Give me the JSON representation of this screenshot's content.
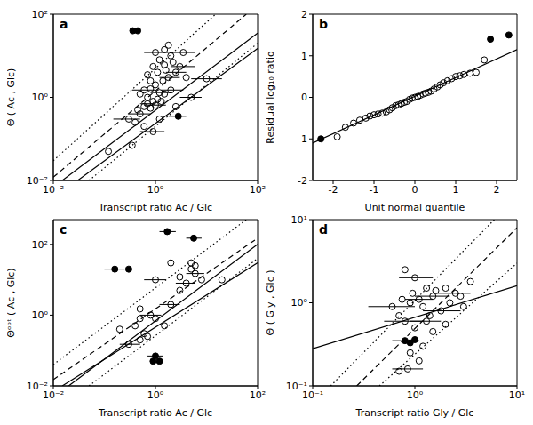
{
  "chart_data": [
    {
      "type": "scatter",
      "title": "a",
      "log": true,
      "x_label": "Transcript ratio Ac / Glc",
      "y_label": "Θ ( Ac , Glc)",
      "xlim": [
        0.01,
        100
      ],
      "ylim": [
        0.01,
        100
      ],
      "xticks": [
        {
          "value": 0.01,
          "label": "10⁻²"
        },
        {
          "value": 1,
          "label": "10⁰"
        },
        {
          "value": 100,
          "label": "10²"
        }
      ],
      "yticks": [
        {
          "value": 0.01,
          "label": "10⁻²"
        },
        {
          "value": 1,
          "label": "10⁰"
        },
        {
          "value": 100,
          "label": "10²"
        }
      ],
      "series": [
        {
          "marker": "open circle",
          "color": "#000000",
          "x": [
            0.12,
            0.35,
            0.3,
            0.4,
            0.5,
            0.45,
            0.6,
            0.7,
            0.8,
            0.9,
            1.0,
            1.1,
            1.3,
            0.7,
            0.6,
            0.8,
            0.5,
            1.2,
            1.5,
            2.0,
            1.0,
            0.8,
            1.4,
            1.8,
            0.7,
            1.1,
            1.6,
            2.5,
            0.9,
            1.5,
            3.0,
            2.2,
            1.2,
            2.0,
            1.0,
            1.5,
            3.5,
            1.8,
            2.5,
            5,
            4,
            0.6,
            1.2,
            0.9,
            10
          ],
          "y": [
            0.05,
            0.07,
            0.3,
            0.25,
            0.4,
            0.5,
            0.6,
            0.7,
            0.55,
            0.8,
            0.65,
            0.9,
            0.8,
            1.0,
            1.5,
            1.6,
            1.2,
            1.3,
            1.2,
            1.5,
            2.0,
            2.5,
            2.5,
            3.0,
            3.5,
            4.0,
            4.5,
            4.0,
            5.5,
            6.0,
            5.5,
            7.0,
            8.0,
            10,
            12,
            14,
            12,
            18,
            0.6,
            1.0,
            3,
            0.2,
            0.3,
            0.15,
            2.8
          ],
          "x_err": [
            null,
            null,
            [
              0.15,
              0.5
            ],
            null,
            [
              0.3,
              0.8
            ],
            null,
            null,
            [
              0.5,
              1.0
            ],
            null,
            null,
            [
              0.6,
              1.6
            ],
            null,
            null,
            null,
            [
              0.35,
              1.0
            ],
            null,
            null,
            [
              0.8,
              2.0
            ],
            null,
            [
              1.3,
              3.5
            ],
            null,
            null,
            null,
            [
              1.2,
              3.0
            ],
            null,
            null,
            null,
            [
              1.6,
              4.0
            ],
            null,
            null,
            [
              2.0,
              6.0
            ],
            null,
            null,
            null,
            [
              0.6,
              1.8
            ],
            null,
            [
              2.0,
              6.0
            ],
            null,
            null,
            [
              3,
              8
            ],
            null,
            null,
            null,
            [
              0.5,
              1.5
            ],
            [
              5,
              20
            ]
          ]
        },
        {
          "marker": "filled circle",
          "color": "#000000",
          "x": [
            0.36,
            0.45,
            2.8
          ],
          "y": [
            40,
            40,
            0.35
          ],
          "x_err": [
            null,
            null,
            [
              1.8,
              4.0
            ]
          ]
        }
      ],
      "lines": [
        {
          "line_style": "solid",
          "color": "#000000",
          "x": [
            0.015,
            100
          ],
          "y": [
            0.01,
            35
          ]
        },
        {
          "line_style": "solid",
          "color": "#000000",
          "x": [
            0.03,
            100
          ],
          "y": [
            0.01,
            15
          ]
        },
        {
          "line_style": "dashed",
          "color": "#000000",
          "x": [
            0.01,
            60
          ],
          "y": [
            0.012,
            100
          ]
        },
        {
          "line_style": "dotted",
          "color": "#000000",
          "x": [
            0.01,
            15
          ],
          "y": [
            0.03,
            100
          ]
        },
        {
          "line_style": "dotted",
          "color": "#000000",
          "x": [
            0.05,
            100
          ],
          "y": [
            0.01,
            20
          ]
        }
      ]
    },
    {
      "type": "scatter",
      "title": "b",
      "x_label": "Unit normal quantile",
      "y_label": "Residual log₁₀ ratio",
      "xlim": [
        -2.5,
        2.5
      ],
      "ylim": [
        -2,
        2
      ],
      "xticks": [
        -2,
        -1,
        0,
        1,
        2
      ],
      "yticks": [
        -2,
        -1,
        0,
        1,
        2
      ],
      "series": [
        {
          "marker": "open circle",
          "color": "#000000",
          "x": [
            -1.9,
            -1.7,
            -1.5,
            -1.35,
            -1.2,
            -1.1,
            -1.0,
            -0.9,
            -0.8,
            -0.7,
            -0.62,
            -0.55,
            -0.47,
            -0.4,
            -0.33,
            -0.26,
            -0.2,
            -0.13,
            -0.07,
            0,
            0.07,
            0.13,
            0.2,
            0.26,
            0.33,
            0.4,
            0.47,
            0.55,
            0.62,
            0.7,
            0.8,
            0.9,
            1.0,
            1.1,
            1.2,
            1.35,
            1.5,
            1.7
          ],
          "y": [
            -0.95,
            -0.72,
            -0.62,
            -0.55,
            -0.5,
            -0.45,
            -0.42,
            -0.4,
            -0.38,
            -0.35,
            -0.3,
            -0.25,
            -0.2,
            -0.18,
            -0.15,
            -0.12,
            -0.1,
            -0.05,
            -0.02,
            0,
            0.02,
            0.05,
            0.08,
            0.1,
            0.12,
            0.15,
            0.2,
            0.25,
            0.3,
            0.35,
            0.4,
            0.45,
            0.5,
            0.52,
            0.55,
            0.58,
            0.6,
            0.9
          ]
        },
        {
          "marker": "filled circle",
          "color": "#000000",
          "x": [
            -2.3,
            1.85,
            2.3
          ],
          "y": [
            -1.0,
            1.4,
            1.5
          ]
        }
      ],
      "lines": [
        {
          "line_style": "solid",
          "color": "#000000",
          "x": [
            -2.5,
            2.5
          ],
          "y": [
            -1.1,
            1.15
          ]
        }
      ]
    },
    {
      "type": "scatter",
      "title": "c",
      "log": true,
      "x_label": "Transcript ratio Ac / Glc",
      "y_label": "Θᵒᵖᵗ ( Ac , Glc)",
      "xlim": [
        0.01,
        100
      ],
      "ylim": [
        0.01,
        500
      ],
      "xticks": [
        {
          "value": 0.01,
          "label": "10⁻²"
        },
        {
          "value": 1,
          "label": "10⁰"
        },
        {
          "value": 100,
          "label": "10²"
        }
      ],
      "yticks": [
        {
          "value": 0.01,
          "label": "10⁻²"
        },
        {
          "value": 1,
          "label": "10⁰"
        },
        {
          "value": 100,
          "label": "10²"
        }
      ],
      "series": [
        {
          "marker": "open circle",
          "color": "#000000",
          "x": [
            0.2,
            0.3,
            0.5,
            0.6,
            0.5,
            0.8,
            1.0,
            0.5,
            1.5,
            2,
            3,
            4,
            5,
            6,
            5,
            6,
            8,
            1,
            2,
            3,
            20,
            0.7,
            0.4
          ],
          "y": [
            0.4,
            0.15,
            0.2,
            0.3,
            0.8,
            1.0,
            0.8,
            1.5,
            0.5,
            2,
            5,
            8,
            20,
            15,
            30,
            25,
            10,
            10,
            30,
            12,
            10,
            0.25,
            0.5
          ],
          "x_err": [
            null,
            [
              0.2,
              0.5
            ],
            null,
            null,
            null,
            [
              0.5,
              1.3
            ],
            null,
            null,
            null,
            [
              1.2,
              3
            ],
            null,
            [
              2.5,
              6
            ],
            null,
            [
              4,
              9
            ],
            null,
            null,
            null,
            [
              0.6,
              1.6
            ],
            null,
            null,
            null,
            null,
            null
          ]
        },
        {
          "marker": "filled circle",
          "color": "#000000",
          "x": [
            1.7,
            5.6,
            0.16,
            0.3,
            0.9,
            1.2,
            1.0
          ],
          "y": [
            230,
            150,
            20,
            20,
            0.05,
            0.05,
            0.07
          ],
          "x_err": [
            [
              1.2,
              2.5
            ],
            [
              4,
              8
            ],
            [
              0.1,
              0.25
            ],
            null,
            null,
            null,
            [
              0.7,
              1.4
            ]
          ]
        }
      ],
      "lines": [
        {
          "line_style": "solid",
          "color": "#000000",
          "x": [
            0.02,
            100
          ],
          "y": [
            0.01,
            100
          ]
        },
        {
          "line_style": "solid",
          "color": "#000000",
          "x": [
            0.015,
            100
          ],
          "y": [
            0.01,
            30
          ]
        },
        {
          "line_style": "dashed",
          "color": "#000000",
          "x": [
            0.01,
            100
          ],
          "y": [
            0.015,
            150
          ]
        },
        {
          "line_style": "dotted",
          "color": "#000000",
          "x": [
            0.01,
            60
          ],
          "y": [
            0.04,
            500
          ]
        },
        {
          "line_style": "dotted",
          "color": "#000000",
          "x": [
            0.05,
            100
          ],
          "y": [
            0.01,
            40
          ]
        }
      ]
    },
    {
      "type": "scatter",
      "title": "d",
      "log": true,
      "x_label": "Transcript ratio Gly / Glc",
      "y_label": "Θ ( Gly , Glc )",
      "xlim": [
        0.1,
        10
      ],
      "ylim": [
        0.1,
        10
      ],
      "xticks": [
        {
          "value": 0.1,
          "label": "10⁻¹"
        },
        {
          "value": 1,
          "label": "10⁰"
        },
        {
          "value": 10,
          "label": "10¹"
        }
      ],
      "yticks": [
        {
          "value": 0.1,
          "label": "10⁻¹"
        },
        {
          "value": 1,
          "label": "10⁰"
        },
        {
          "value": 10,
          "label": "10¹"
        }
      ],
      "series": [
        {
          "marker": "open circle",
          "color": "#000000",
          "x": [
            0.6,
            0.8,
            1.0,
            1.3,
            1.5,
            2.0,
            2.5,
            3.5,
            0.9,
            1.1,
            1.2,
            0.7,
            0.8,
            1.0,
            1.4,
            1.8,
            2.2,
            3.0,
            0.9,
            1.1,
            0.7,
            0.85,
            1.2,
            1.5,
            1.6,
            0.95,
            2.8,
            1.3,
            0.75,
            2.0
          ],
          "y": [
            0.9,
            2.5,
            2.0,
            1.5,
            1.2,
            1.5,
            1.3,
            1.8,
            1.0,
            1.1,
            0.9,
            0.7,
            0.6,
            0.5,
            0.7,
            0.8,
            1.0,
            0.9,
            0.25,
            0.2,
            0.15,
            0.16,
            0.3,
            0.45,
            1.4,
            1.3,
            1.2,
            0.6,
            1.1,
            0.55
          ],
          "x_err": [
            [
              0.35,
              1.0
            ],
            null,
            [
              0.7,
              1.5
            ],
            null,
            [
              1.0,
              2.2
            ],
            null,
            [
              1.6,
              3.5
            ],
            null,
            null,
            [
              0.8,
              1.5
            ],
            null,
            null,
            [
              0.5,
              1.2
            ],
            null,
            null,
            [
              1.2,
              2.8
            ],
            null,
            null,
            null,
            null,
            null,
            [
              0.6,
              1.2
            ],
            null,
            null,
            null,
            null,
            null,
            [
              0.9,
              1.8
            ],
            null,
            null
          ]
        },
        {
          "marker": "filled circle",
          "color": "#000000",
          "x": [
            0.8,
            0.9,
            1.0
          ],
          "y": [
            0.35,
            0.33,
            0.36
          ],
          "x_err": [
            [
              0.6,
              1.1
            ],
            null,
            null
          ]
        }
      ],
      "lines": [
        {
          "line_style": "solid",
          "color": "#000000",
          "x": [
            0.1,
            10
          ],
          "y": [
            0.28,
            1.6
          ]
        },
        {
          "line_style": "dashed",
          "color": "#000000",
          "x": [
            0.27,
            10
          ],
          "y": [
            0.1,
            8
          ]
        },
        {
          "line_style": "dotted",
          "color": "#000000",
          "x": [
            0.15,
            6
          ],
          "y": [
            0.1,
            10
          ]
        },
        {
          "line_style": "dotted",
          "color": "#000000",
          "x": [
            0.45,
            10
          ],
          "y": [
            0.1,
            3
          ]
        }
      ]
    }
  ]
}
